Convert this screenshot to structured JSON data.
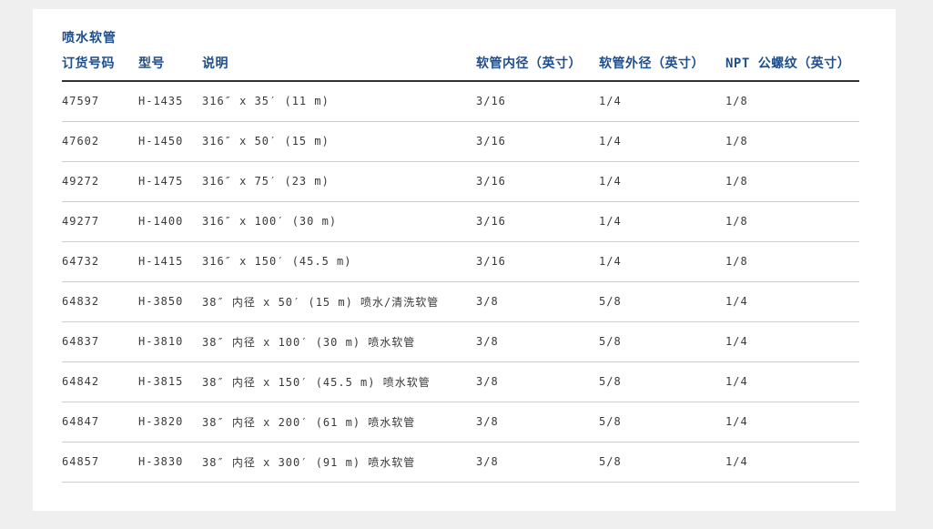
{
  "colors": {
    "page_background": "#efefef",
    "panel_background": "#ffffff",
    "accent_blue": "#1e4e8c",
    "data_text": "#3a3a3a",
    "header_rule": "#2e3338",
    "row_rule": "#cccccc"
  },
  "section": {
    "title": "喷水软管"
  },
  "table": {
    "columns": [
      {
        "label": "订货号码"
      },
      {
        "label": "型号"
      },
      {
        "label": "说明"
      },
      {
        "label": "软管内径（英寸）"
      },
      {
        "label": "软管外径（英寸）"
      },
      {
        "label": "NPT 公螺纹（英寸）"
      }
    ],
    "rows": [
      {
        "order_no": "47597",
        "model": "H-1435",
        "description": "316″ x 35′ (11 m)",
        "hose_id": "3/16",
        "hose_od": "1/4",
        "npt": "1/8"
      },
      {
        "order_no": "47602",
        "model": "H-1450",
        "description": "316″ x 50′ (15 m)",
        "hose_id": "3/16",
        "hose_od": "1/4",
        "npt": "1/8"
      },
      {
        "order_no": "49272",
        "model": "H-1475",
        "description": "316″ x 75′ (23 m)",
        "hose_id": "3/16",
        "hose_od": "1/4",
        "npt": "1/8"
      },
      {
        "order_no": "49277",
        "model": "H-1400",
        "description": "316″ x 100′ (30 m)",
        "hose_id": "3/16",
        "hose_od": "1/4",
        "npt": "1/8"
      },
      {
        "order_no": "64732",
        "model": "H-1415",
        "description": "316″ x 150′ (45.5 m)",
        "hose_id": "3/16",
        "hose_od": "1/4",
        "npt": "1/8"
      },
      {
        "order_no": "64832",
        "model": "H-3850",
        "description": "38″ 内径 x 50′ (15 m) 喷水/清洗软管",
        "hose_id": "3/8",
        "hose_od": "5/8",
        "npt": "1/4"
      },
      {
        "order_no": "64837",
        "model": "H-3810",
        "description": "38″ 内径 x 100′ (30 m) 喷水软管",
        "hose_id": "3/8",
        "hose_od": "5/8",
        "npt": "1/4"
      },
      {
        "order_no": "64842",
        "model": "H-3815",
        "description": "38″ 内径 x 150′ (45.5 m) 喷水软管",
        "hose_id": "3/8",
        "hose_od": "5/8",
        "npt": "1/4"
      },
      {
        "order_no": "64847",
        "model": "H-3820",
        "description": "38″ 内径 x 200′ (61 m) 喷水软管",
        "hose_id": "3/8",
        "hose_od": "5/8",
        "npt": "1/4"
      },
      {
        "order_no": "64857",
        "model": "H-3830",
        "description": "38″ 内径 x 300′ (91 m) 喷水软管",
        "hose_id": "3/8",
        "hose_od": "5/8",
        "npt": "1/4"
      }
    ]
  }
}
